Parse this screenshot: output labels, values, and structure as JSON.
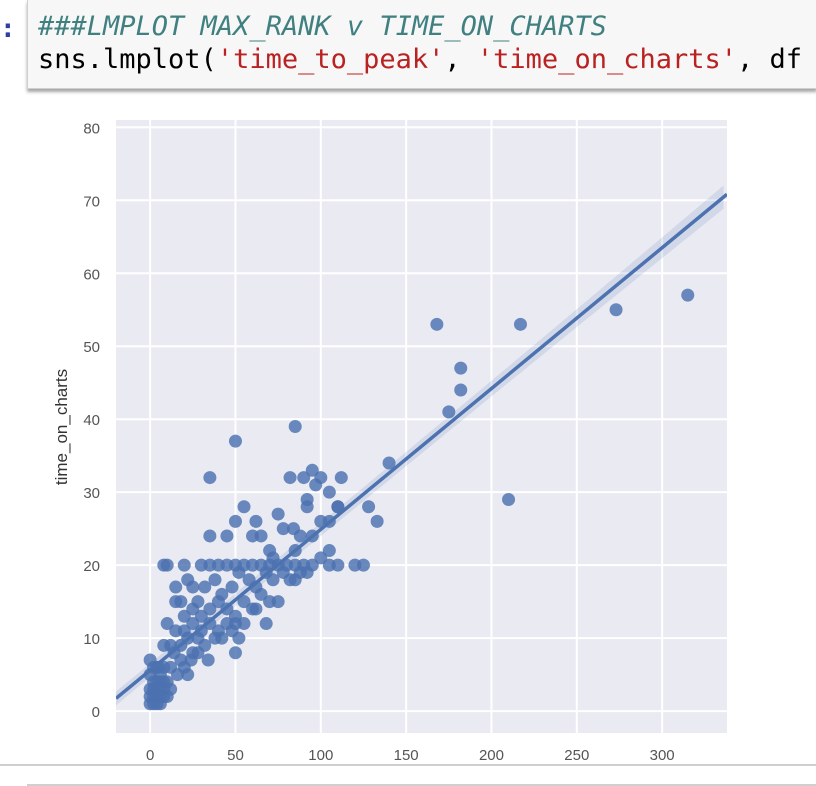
{
  "cell": {
    "prompt": ":",
    "comment": "###LMPLOT MAX_RANK v TIME_ON_CHARTS",
    "code_prefix": "sns.lmplot(",
    "arg1": "'time_to_peak'",
    "sep1": ", ",
    "arg2": "'time_on_charts'",
    "sep2": ", df"
  },
  "chart_data": {
    "type": "scatter",
    "title": "",
    "xlabel": "",
    "ylabel": "time_on_charts",
    "xlim": [
      -20,
      338
    ],
    "ylim": [
      -3,
      81
    ],
    "xticks": [
      0,
      50,
      100,
      150,
      200,
      250,
      300
    ],
    "yticks": [
      0,
      10,
      20,
      30,
      40,
      50,
      60,
      70,
      80
    ],
    "grid": true,
    "background": "#eaeaf2",
    "point_color": "#4c72b0",
    "regression": {
      "intercept": 5.6,
      "slope": 0.193
    },
    "points": [
      [
        168,
        53
      ],
      [
        217,
        53
      ],
      [
        273,
        55
      ],
      [
        315,
        57
      ],
      [
        182,
        47
      ],
      [
        182,
        44
      ],
      [
        175,
        41
      ],
      [
        140,
        34
      ],
      [
        210,
        29
      ],
      [
        50,
        37
      ],
      [
        85,
        39
      ],
      [
        35,
        32
      ],
      [
        82,
        32
      ],
      [
        90,
        32
      ],
      [
        95,
        33
      ],
      [
        100,
        32
      ],
      [
        97,
        31
      ],
      [
        112,
        32
      ],
      [
        105,
        30
      ],
      [
        92,
        29
      ],
      [
        92,
        28
      ],
      [
        110,
        28
      ],
      [
        128,
        28
      ],
      [
        133,
        26
      ],
      [
        125,
        20
      ],
      [
        55,
        28
      ],
      [
        62,
        26
      ],
      [
        50,
        26
      ],
      [
        60,
        24
      ],
      [
        65,
        24
      ],
      [
        75,
        27
      ],
      [
        78,
        25
      ],
      [
        84,
        25
      ],
      [
        88,
        24
      ],
      [
        95,
        24
      ],
      [
        100,
        26
      ],
      [
        105,
        26
      ],
      [
        110,
        28
      ],
      [
        35,
        24
      ],
      [
        45,
        24
      ],
      [
        70,
        22
      ],
      [
        72,
        21
      ],
      [
        85,
        22
      ],
      [
        95,
        20
      ],
      [
        100,
        21
      ],
      [
        105,
        22
      ],
      [
        110,
        20
      ],
      [
        120,
        20
      ],
      [
        10,
        20
      ],
      [
        20,
        20
      ],
      [
        30,
        20
      ],
      [
        35,
        20
      ],
      [
        40,
        20
      ],
      [
        45,
        20
      ],
      [
        50,
        20
      ],
      [
        55,
        20
      ],
      [
        60,
        20
      ],
      [
        65,
        20
      ],
      [
        70,
        20
      ],
      [
        75,
        20
      ],
      [
        80,
        20
      ],
      [
        85,
        20
      ],
      [
        90,
        20
      ],
      [
        105,
        20
      ],
      [
        8,
        20
      ],
      [
        15,
        17
      ],
      [
        18,
        15
      ],
      [
        22,
        18
      ],
      [
        25,
        17
      ],
      [
        28,
        15
      ],
      [
        32,
        17
      ],
      [
        38,
        18
      ],
      [
        42,
        16
      ],
      [
        48,
        17
      ],
      [
        52,
        19
      ],
      [
        58,
        18
      ],
      [
        62,
        17
      ],
      [
        68,
        19
      ],
      [
        72,
        18
      ],
      [
        78,
        19
      ],
      [
        82,
        18
      ],
      [
        88,
        19
      ],
      [
        92,
        19
      ],
      [
        15,
        15
      ],
      [
        20,
        13
      ],
      [
        25,
        14
      ],
      [
        30,
        13
      ],
      [
        35,
        14
      ],
      [
        40,
        15
      ],
      [
        45,
        14
      ],
      [
        50,
        13
      ],
      [
        55,
        15
      ],
      [
        60,
        14
      ],
      [
        65,
        16
      ],
      [
        70,
        15
      ],
      [
        75,
        15
      ],
      [
        85,
        18
      ],
      [
        10,
        12
      ],
      [
        15,
        11
      ],
      [
        20,
        11
      ],
      [
        25,
        12
      ],
      [
        30,
        11
      ],
      [
        35,
        12
      ],
      [
        40,
        11
      ],
      [
        45,
        12
      ],
      [
        50,
        12
      ],
      [
        55,
        12
      ],
      [
        62,
        14
      ],
      [
        68,
        12
      ],
      [
        12,
        9
      ],
      [
        18,
        9
      ],
      [
        22,
        10
      ],
      [
        28,
        10
      ],
      [
        32,
        9
      ],
      [
        38,
        10
      ],
      [
        42,
        10
      ],
      [
        48,
        11
      ],
      [
        52,
        10
      ],
      [
        8,
        9
      ],
      [
        14,
        8
      ],
      [
        18,
        7
      ],
      [
        24,
        7
      ],
      [
        28,
        8
      ],
      [
        34,
        7
      ],
      [
        50,
        8
      ],
      [
        22,
        5
      ],
      [
        5,
        6
      ],
      [
        8,
        6
      ],
      [
        12,
        6
      ],
      [
        16,
        5
      ],
      [
        20,
        6
      ],
      [
        25,
        8
      ],
      [
        0,
        7
      ],
      [
        2,
        6
      ],
      [
        4,
        6
      ],
      [
        6,
        5
      ],
      [
        0,
        5
      ],
      [
        2,
        4
      ],
      [
        4,
        4
      ],
      [
        6,
        4
      ],
      [
        8,
        4
      ],
      [
        10,
        4
      ],
      [
        0,
        3
      ],
      [
        2,
        3
      ],
      [
        4,
        3
      ],
      [
        6,
        3
      ],
      [
        8,
        3
      ],
      [
        0,
        2
      ],
      [
        2,
        2
      ],
      [
        4,
        2
      ],
      [
        6,
        2
      ],
      [
        8,
        2
      ],
      [
        0,
        1
      ],
      [
        2,
        1
      ],
      [
        4,
        1
      ],
      [
        6,
        1
      ],
      [
        10,
        2
      ],
      [
        12,
        3
      ]
    ]
  }
}
